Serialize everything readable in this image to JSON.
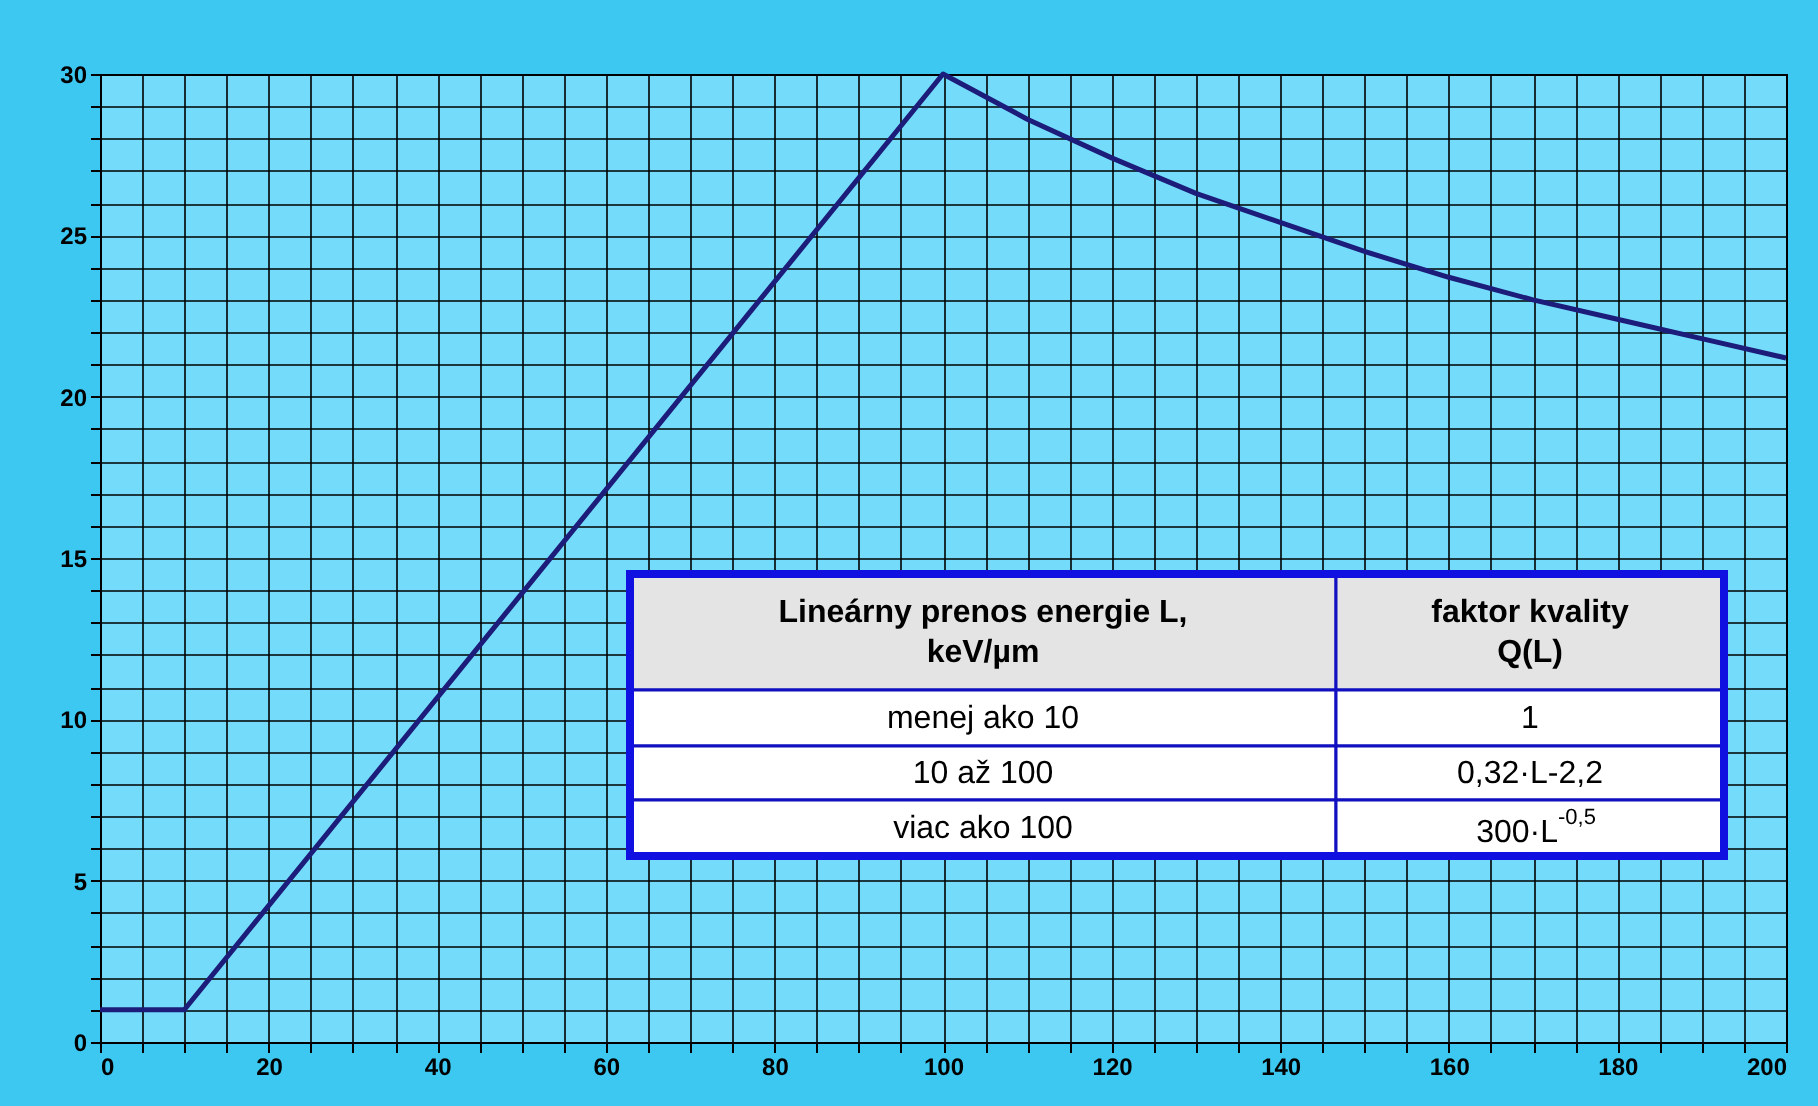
{
  "chart_data": {
    "type": "line",
    "x": [
      0,
      10,
      100,
      110,
      120,
      130,
      140,
      150,
      160,
      170,
      180,
      190,
      200
    ],
    "series": [
      {
        "color": "#1c1c7a",
        "values": [
          1,
          1,
          30,
          28.6,
          27.4,
          26.3,
          25.4,
          24.5,
          23.7,
          23.0,
          22.4,
          21.8,
          21.2
        ]
      }
    ],
    "xlim": [
      0,
      200
    ],
    "ylim": [
      0,
      30
    ],
    "xticks": [
      0,
      {
        "value": 5,
        "label": null
      },
      {
        "value": 10,
        "label": null
      },
      {
        "value": 15,
        "label": null
      },
      20,
      {
        "value": 25,
        "label": null
      },
      {
        "value": 30,
        "label": null
      },
      {
        "value": 35,
        "label": null
      },
      40,
      {
        "value": 45,
        "label": null
      },
      {
        "value": 50,
        "label": null
      },
      {
        "value": 55,
        "label": null
      },
      60,
      {
        "value": 65,
        "label": null
      },
      {
        "value": 70,
        "label": null
      },
      {
        "value": 75,
        "label": null
      },
      80,
      {
        "value": 85,
        "label": null
      },
      {
        "value": 90,
        "label": null
      },
      {
        "value": 95,
        "label": null
      },
      100,
      {
        "value": 105,
        "label": null
      },
      {
        "value": 110,
        "label": null
      },
      {
        "value": 115,
        "label": null
      },
      120,
      {
        "value": 125,
        "label": null
      },
      {
        "value": 130,
        "label": null
      },
      {
        "value": 135,
        "label": null
      },
      140,
      {
        "value": 145,
        "label": null
      },
      {
        "value": 150,
        "label": null
      },
      {
        "value": 155,
        "label": null
      },
      160,
      {
        "value": 165,
        "label": null
      },
      {
        "value": 170,
        "label": null
      },
      {
        "value": 175,
        "label": null
      },
      180,
      {
        "value": 185,
        "label": null
      },
      {
        "value": 190,
        "label": null
      },
      {
        "value": 195,
        "label": null
      },
      200
    ],
    "yticks": [
      0,
      {
        "value": 1,
        "label": null
      },
      {
        "value": 2,
        "label": null
      },
      {
        "value": 3,
        "label": null
      },
      {
        "value": 4,
        "label": null
      },
      5,
      {
        "value": 6,
        "label": null
      },
      {
        "value": 7,
        "label": null
      },
      {
        "value": 8,
        "label": null
      },
      {
        "value": 9,
        "label": null
      },
      10,
      {
        "value": 11,
        "label": null
      },
      {
        "value": 12,
        "label": null
      },
      {
        "value": 13,
        "label": null
      },
      {
        "value": 14,
        "label": null
      },
      15,
      {
        "value": 16,
        "label": null
      },
      {
        "value": 17,
        "label": null
      },
      {
        "value": 18,
        "label": null
      },
      {
        "value": 19,
        "label": null
      },
      20,
      {
        "value": 21,
        "label": null
      },
      {
        "value": 22,
        "label": null
      },
      {
        "value": 23,
        "label": null
      },
      {
        "value": 24,
        "label": null
      },
      25,
      {
        "value": 26,
        "label": null
      },
      {
        "value": 27,
        "label": null
      },
      {
        "value": 28,
        "label": null
      },
      {
        "value": 29,
        "label": null
      },
      30
    ],
    "grid": true,
    "marker": "none",
    "line_style": "solid",
    "annotations": [
      "Lineárny prenos energie L,\nkeV/µm",
      "faktor kvality\nQ(L)",
      "menej ako 10",
      "1",
      "10 až 100",
      "0,32·L-2,2",
      "viac ako 100",
      "300·L$^{-0,5}$"
    ]
  }
}
